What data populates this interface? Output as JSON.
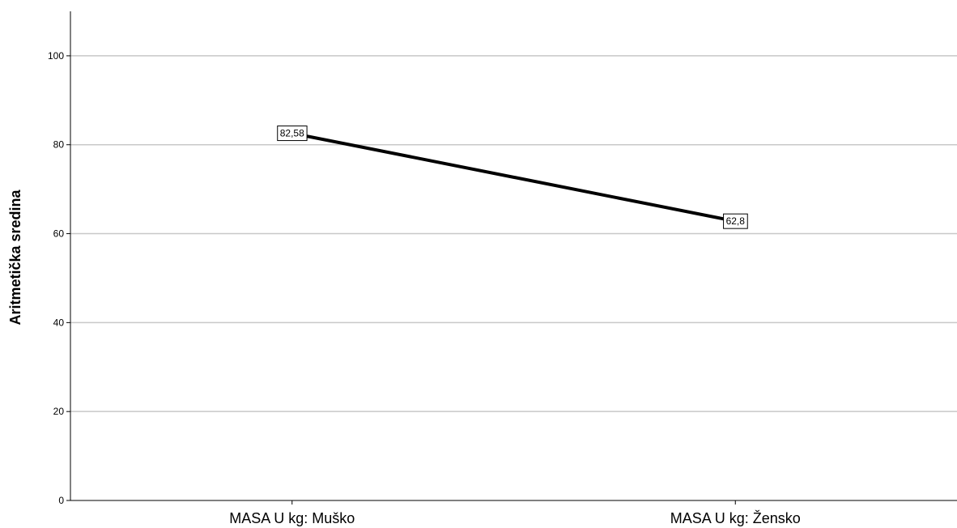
{
  "chart_data": {
    "type": "line",
    "title": "",
    "xlabel": "",
    "ylabel": "Aritmetička sredina",
    "categories": [
      "MASA U kg: Muško",
      "MASA U kg: Žensko"
    ],
    "series": [
      {
        "values": [
          82.58,
          62.8
        ],
        "labels": [
          "82,58",
          "62,8"
        ]
      }
    ],
    "ylim": [
      0,
      110
    ],
    "yticks": [
      0,
      20,
      40,
      60,
      80,
      100
    ],
    "grid": true,
    "legend": "none",
    "colors": {
      "line": "#000000",
      "grid": "#c8c8c8",
      "axis": "#000000"
    }
  }
}
